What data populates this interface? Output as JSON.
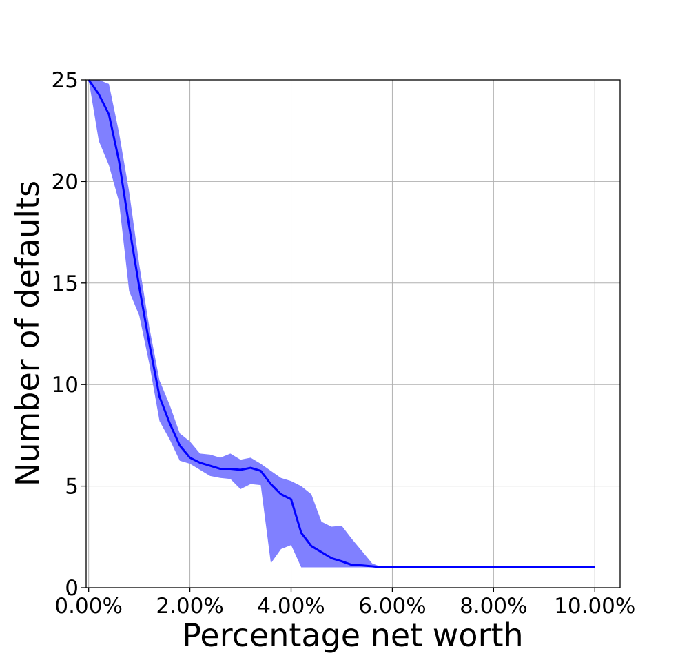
{
  "chart_data": {
    "type": "area",
    "title": "",
    "xlabel": "Percentage net worth",
    "ylabel": "Number of defaults",
    "xlim": [
      -0.0005,
      0.105
    ],
    "ylim": [
      0,
      25
    ],
    "grid": true,
    "legend": "none",
    "x_ticks": [
      {
        "value": 0.0,
        "label": "0.00%"
      },
      {
        "value": 0.02,
        "label": "2.00%"
      },
      {
        "value": 0.04,
        "label": "4.00%"
      },
      {
        "value": 0.06,
        "label": "6.00%"
      },
      {
        "value": 0.08,
        "label": "8.00%"
      },
      {
        "value": 0.1,
        "label": "10.00%"
      }
    ],
    "y_ticks": [
      {
        "value": 0,
        "label": "0"
      },
      {
        "value": 5,
        "label": "5"
      },
      {
        "value": 10,
        "label": "10"
      },
      {
        "value": 15,
        "label": "15"
      },
      {
        "value": 20,
        "label": "20"
      },
      {
        "value": 25,
        "label": "25"
      }
    ],
    "colors": {
      "line": "#0000ff",
      "band": "#8080ff",
      "grid": "#b0b0b0"
    },
    "x": [
      0.0,
      0.002,
      0.004,
      0.006,
      0.008,
      0.01,
      0.012,
      0.014,
      0.016,
      0.018,
      0.02,
      0.022,
      0.024,
      0.026,
      0.028,
      0.03,
      0.032,
      0.034,
      0.036,
      0.038,
      0.04,
      0.042,
      0.044,
      0.046,
      0.048,
      0.05,
      0.052,
      0.054,
      0.056,
      0.058,
      0.06,
      0.062,
      0.064,
      0.066,
      0.068,
      0.07,
      0.072,
      0.074,
      0.076,
      0.078,
      0.08,
      0.082,
      0.084,
      0.086,
      0.088,
      0.09,
      0.092,
      0.094,
      0.096,
      0.098,
      0.1
    ],
    "series": [
      {
        "values": [
          25.0,
          24.3,
          23.3,
          21.0,
          17.8,
          14.8,
          12.0,
          9.4,
          8.1,
          7.0,
          6.4,
          6.15,
          6.0,
          5.85,
          5.85,
          5.8,
          5.9,
          5.75,
          5.1,
          4.6,
          4.35,
          2.7,
          2.05,
          1.75,
          1.45,
          1.3,
          1.12,
          1.1,
          1.05,
          1.0,
          1.0,
          1.0,
          1.0,
          1.0,
          1.0,
          1.0,
          1.0,
          1.0,
          1.0,
          1.0,
          1.0,
          1.0,
          1.0,
          1.0,
          1.0,
          1.0,
          1.0,
          1.0,
          1.0,
          1.0,
          1.0
        ],
        "upper": [
          25.0,
          25.0,
          24.8,
          22.4,
          19.5,
          15.9,
          12.8,
          10.2,
          9.0,
          7.6,
          7.2,
          6.6,
          6.55,
          6.4,
          6.6,
          6.3,
          6.4,
          6.1,
          5.75,
          5.4,
          5.25,
          5.0,
          4.6,
          3.25,
          3.0,
          3.05,
          2.4,
          1.8,
          1.2,
          1.0,
          1.0,
          1.0,
          1.0,
          1.0,
          1.0,
          1.0,
          1.0,
          1.0,
          1.0,
          1.0,
          1.0,
          1.0,
          1.0,
          1.0,
          1.0,
          1.0,
          1.0,
          1.0,
          1.0,
          1.0,
          1.0
        ],
        "lower": [
          25.0,
          22.0,
          20.8,
          19.0,
          14.6,
          13.4,
          11.0,
          8.2,
          7.3,
          6.25,
          6.1,
          5.8,
          5.5,
          5.4,
          5.35,
          4.85,
          5.1,
          5.05,
          1.2,
          1.9,
          2.1,
          1.0,
          1.0,
          1.0,
          1.0,
          1.0,
          1.0,
          1.0,
          1.0,
          1.0,
          1.0,
          1.0,
          1.0,
          1.0,
          1.0,
          1.0,
          1.0,
          1.0,
          1.0,
          1.0,
          1.0,
          1.0,
          1.0,
          1.0,
          1.0,
          1.0,
          1.0,
          1.0,
          1.0,
          1.0,
          1.0
        ]
      }
    ]
  }
}
